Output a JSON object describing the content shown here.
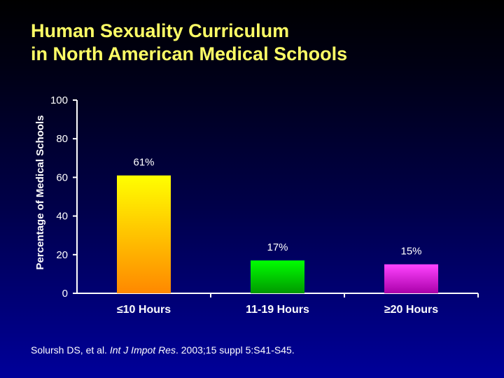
{
  "slide": {
    "title_line1": "Human Sexuality Curriculum",
    "title_line2": "in North American Medical Schools",
    "citation_authors": "Solursh DS, et al. ",
    "citation_journal": "Int J Impot Res",
    "citation_rest": ". 2003;15 suppl 5:S41-S45."
  },
  "colors": {
    "title": "#ffff66",
    "text": "#ffffff",
    "bar_gradients": [
      [
        "#ffff00",
        "#ff8800"
      ],
      [
        "#00ff00",
        "#009900"
      ],
      [
        "#ff44ff",
        "#aa00aa"
      ]
    ]
  },
  "chart_data": {
    "type": "bar",
    "categories": [
      "≤10 Hours",
      "11-19 Hours",
      "≥20 Hours"
    ],
    "values": [
      61,
      17,
      15
    ],
    "data_labels": [
      "61%",
      "17%",
      "15%"
    ],
    "title": "",
    "xlabel": "",
    "ylabel": "Percentage of Medical Schools",
    "ylim": [
      0,
      100
    ],
    "yticks": [
      0,
      20,
      40,
      60,
      80,
      100
    ],
    "grid": false,
    "legend": "none"
  }
}
